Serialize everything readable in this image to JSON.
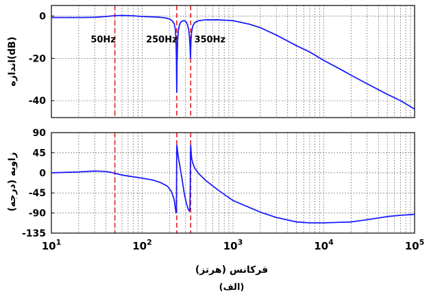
{
  "chart_data": [
    {
      "type": "line",
      "panel": "magnitude",
      "ylabel": "اندازه(dB)",
      "xscale": "log",
      "xlim": [
        10,
        100000
      ],
      "ylim": [
        -48,
        5
      ],
      "yticks": [
        0,
        -20,
        -40
      ],
      "ytick_labels": [
        "0",
        "-20",
        "-40"
      ],
      "grid": true,
      "series": [
        {
          "color": "#1a1aff",
          "x": [
            10,
            20,
            30,
            40,
            50,
            60,
            80,
            100,
            130,
            160,
            180,
            200,
            215,
            225,
            232,
            236,
            238,
            240,
            242,
            246,
            250,
            256,
            265,
            275,
            285,
            295,
            305,
            315,
            325,
            332,
            337,
            340,
            342,
            345,
            350,
            360,
            380,
            420,
            500,
            700,
            1000,
            1500,
            2000,
            3000,
            5000,
            7000,
            10000,
            15000,
            20000,
            30000,
            50000,
            70000,
            100000
          ],
          "y": [
            -0.7,
            -0.7,
            -0.6,
            -0.2,
            0.2,
            0.3,
            0.1,
            -0.2,
            -0.4,
            -0.6,
            -0.9,
            -1.4,
            -2.3,
            -3.6,
            -6.5,
            -12,
            -20,
            -36,
            -22,
            -11,
            -7,
            -4.5,
            -3,
            -2.4,
            -2.2,
            -2.3,
            -2.8,
            -4,
            -6.5,
            -10,
            -15,
            -20,
            -16,
            -11,
            -7.5,
            -4.8,
            -3,
            -2.2,
            -1.8,
            -1.8,
            -2.2,
            -3.8,
            -5.5,
            -9,
            -14,
            -17,
            -21,
            -25,
            -28,
            -32,
            -37,
            -40,
            -44
          ]
        }
      ],
      "annotations": [
        {
          "text": "50Hz",
          "x": 50
        },
        {
          "text": "250Hz",
          "x": 240
        },
        {
          "text": "350Hz",
          "x": 342
        }
      ],
      "vlines": [
        50,
        240,
        342
      ]
    },
    {
      "type": "line",
      "panel": "phase",
      "ylabel": "زاویه (درجه)",
      "xscale": "log",
      "xlim": [
        10,
        100000
      ],
      "ylim": [
        -135,
        90
      ],
      "yticks": [
        90,
        45,
        0,
        -45,
        -90,
        -135
      ],
      "ytick_labels": [
        "90",
        "45",
        "0",
        "-45",
        "-90",
        "-135"
      ],
      "xticks": [
        10,
        100,
        1000,
        10000,
        100000
      ],
      "xtick_labels": [
        {
          "base": "10",
          "exp": "1"
        },
        {
          "base": "10",
          "exp": "2"
        },
        {
          "base": "10",
          "exp": "3"
        },
        {
          "base": "10",
          "exp": "4"
        },
        {
          "base": "10",
          "exp": "5"
        }
      ],
      "xlabel": "فرکانس (هرتز)",
      "grid": true,
      "series": [
        {
          "color": "#1a1aff",
          "x": [
            10,
            20,
            30,
            40,
            45,
            50,
            60,
            80,
            100,
            130,
            160,
            190,
            210,
            225,
            232,
            236,
            238,
            239,
            240,
            241,
            243,
            246,
            250,
            260,
            270,
            280,
            290,
            300,
            310,
            320,
            330,
            335,
            338,
            340,
            342,
            344,
            347,
            352,
            360,
            380,
            420,
            500,
            700,
            1000,
            2000,
            3000,
            5000,
            7000,
            10000,
            20000,
            30000,
            50000,
            70000,
            100000
          ],
          "y": [
            0,
            2,
            4,
            3,
            1,
            -1,
            -5,
            -9,
            -12,
            -16,
            -22,
            -30,
            -42,
            -60,
            -80,
            -90,
            -85,
            -20,
            55,
            62,
            55,
            45,
            35,
            15,
            -5,
            -25,
            -45,
            -60,
            -72,
            -80,
            -86,
            -83,
            -40,
            40,
            62,
            55,
            42,
            30,
            22,
            10,
            -2,
            -17,
            -40,
            -62,
            -88,
            -100,
            -110,
            -112,
            -112,
            -110,
            -105,
            -98,
            -95,
            -93
          ]
        }
      ],
      "vlines": [
        50,
        240,
        342
      ]
    }
  ],
  "caption": "(الف)"
}
